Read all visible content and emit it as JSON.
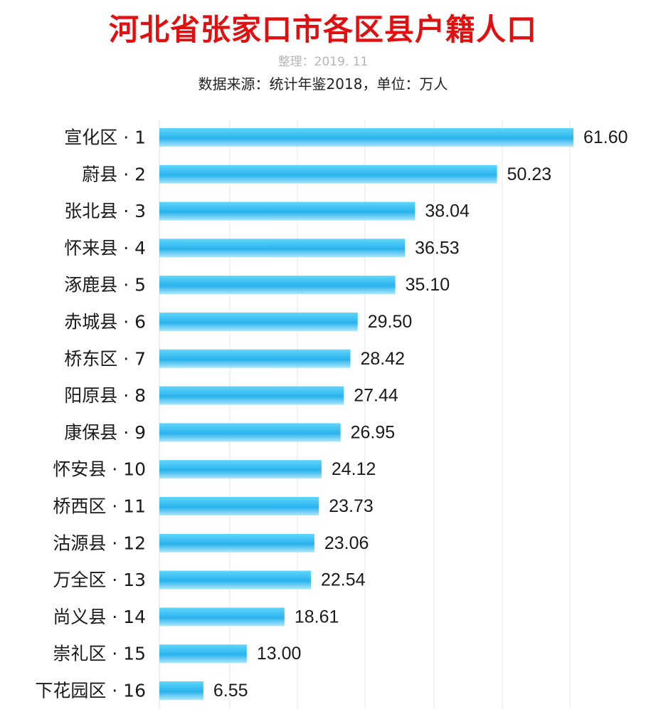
{
  "chart_data": {
    "type": "bar",
    "orientation": "horizontal",
    "title": "河北省张家口市各区县户籍人口",
    "subtitle": "整理：2019. 11",
    "source_note": "数据来源：统计年鉴2018，单位：万人",
    "categories": [
      "宣化区 · 1",
      "蔚县 · 2",
      "张北县 · 3",
      "怀来县 · 4",
      "涿鹿县 · 5",
      "赤城县 · 6",
      "桥东区 · 7",
      "阳原县 · 8",
      "康保县 · 9",
      "怀安县 · 10",
      "桥西区 · 11",
      "沽源县 · 12",
      "万全区 · 13",
      "尚义县 · 14",
      "崇礼区 · 15",
      "下花园区 · 16"
    ],
    "values": [
      61.6,
      50.23,
      38.04,
      36.53,
      35.1,
      29.5,
      28.42,
      27.44,
      26.95,
      24.12,
      23.73,
      23.06,
      22.54,
      18.61,
      13.0,
      6.55
    ],
    "value_labels": [
      "61.60",
      "50.23",
      "38.04",
      "36.53",
      "35.10",
      "29.50",
      "28.42",
      "27.44",
      "26.95",
      "24.12",
      "23.73",
      "23.06",
      "22.54",
      "18.61",
      "13.00",
      "6.55"
    ],
    "xlim": [
      0,
      61.6
    ],
    "grid": true,
    "colors": {
      "title": "#e01010",
      "bar_top": "#5fd6fb",
      "bar_mid": "#29b2ec",
      "bar_bottom": "#aee7fb",
      "grid": "#e4e4e4"
    }
  }
}
